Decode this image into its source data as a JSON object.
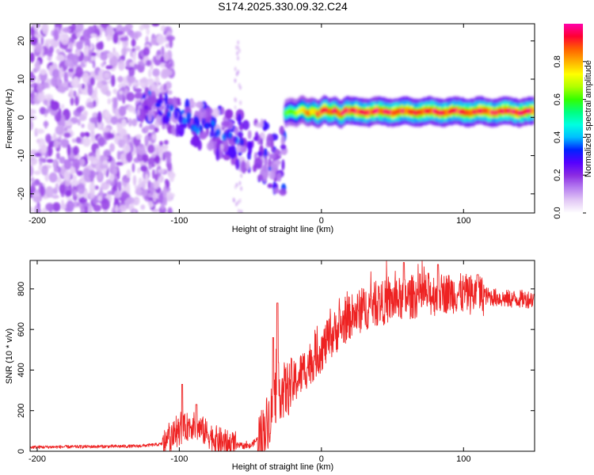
{
  "title": "S174.2025.330.09.32.C24",
  "chart_data": [
    {
      "type": "heatmap",
      "name": "spectrogram",
      "xlabel": "Height of straight line (km)",
      "ylabel": "Frequency (Hz)",
      "xlim": [
        -205,
        150
      ],
      "ylim": [
        -25,
        24.5
      ],
      "xticks": [
        -200,
        -100,
        0,
        100
      ],
      "yticks": [
        -20,
        -10,
        0,
        10,
        20
      ],
      "colorbar": {
        "label": "Normalized spectral amplitude",
        "range": [
          0,
          1
        ],
        "ticks": [
          "0.0",
          "0.2",
          "0.4",
          "0.6",
          "0.8"
        ],
        "colors": [
          "#ffffff",
          "#e2c8f5",
          "#b77ef0",
          "#8a2be2",
          "#5500ff",
          "#0022ff",
          "#00bfff",
          "#00ffe0",
          "#00ff7f",
          "#33ff00",
          "#b0ff00",
          "#ffff00",
          "#ffb000",
          "#ff6000",
          "#ff0033",
          "#ff00aa"
        ]
      },
      "regions": [
        {
          "x_range": [
            -205,
            -115
          ],
          "freq_range": [
            -25,
            24.5
          ],
          "amplitude": [
            0.05,
            0.2
          ],
          "description": "scattered noise"
        },
        {
          "x_range": [
            -130,
            -25
          ],
          "freq_center_start": 3,
          "freq_center_end": -12,
          "amplitude": [
            0.1,
            0.35
          ]
        },
        {
          "x_range": [
            -25,
            150
          ],
          "freq_center": 1.5,
          "amplitude": [
            0.4,
            0.95
          ]
        }
      ]
    },
    {
      "type": "line",
      "name": "snr",
      "xlabel": "Height of straight line (km)",
      "ylabel": "SNR (10 * v/v)",
      "xlim": [
        -205,
        150
      ],
      "ylim": [
        0,
        940
      ],
      "xticks": [
        -200,
        -100,
        0,
        100
      ],
      "yticks": [
        0,
        200,
        400,
        600,
        800
      ],
      "color": "#ee2222",
      "baseline": [
        [
          -205,
          20
        ],
        [
          -130,
          25
        ],
        [
          -112,
          35
        ],
        [
          -100,
          100
        ],
        [
          -92,
          130
        ],
        [
          -85,
          110
        ],
        [
          -75,
          60
        ],
        [
          -65,
          30
        ],
        [
          -50,
          25
        ],
        [
          -42,
          80
        ],
        [
          -36,
          180
        ],
        [
          -31,
          300
        ],
        [
          -25,
          300
        ],
        [
          -20,
          330
        ],
        [
          -10,
          420
        ],
        [
          0,
          500
        ],
        [
          10,
          590
        ],
        [
          20,
          660
        ],
        [
          35,
          720
        ],
        [
          50,
          740
        ],
        [
          70,
          770
        ],
        [
          90,
          780
        ],
        [
          110,
          770
        ],
        [
          130,
          750
        ],
        [
          150,
          750
        ]
      ],
      "peaks": [
        [
          -98,
          330
        ],
        [
          -88,
          230
        ],
        [
          -34,
          560
        ],
        [
          -31,
          730
        ],
        [
          58,
          930
        ],
        [
          82,
          920
        ],
        [
          110,
          870
        ]
      ]
    }
  ]
}
